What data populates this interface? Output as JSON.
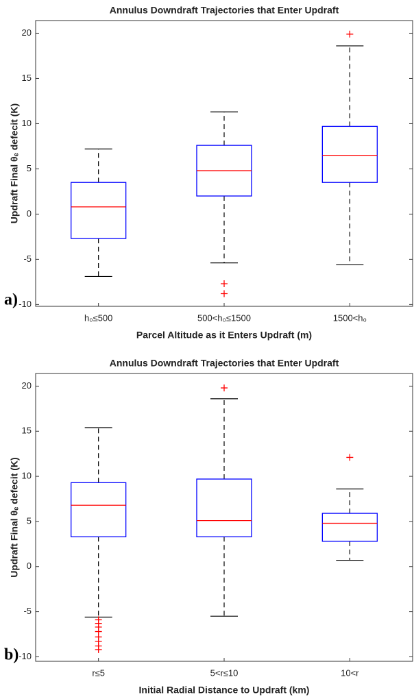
{
  "chart_data": [
    {
      "type": "box",
      "title": "Annulus Downdraft Trajectories that Enter Updraft",
      "x_label": "Parcel Altitude as it Enters Updraft (m)",
      "y_label": "Updraft Final θₑ defecit (K)",
      "panel_label": "a)",
      "categories": [
        "h₀≤500",
        "500<h₀≤1500",
        "1500<h₀"
      ],
      "boxes": [
        {
          "whisker_low": -6.9,
          "q1": -2.7,
          "median": 0.8,
          "q3": 3.5,
          "whisker_high": 7.2,
          "outliers": []
        },
        {
          "whisker_low": -5.4,
          "q1": 2.0,
          "median": 4.8,
          "q3": 7.6,
          "whisker_high": 11.3,
          "outliers": [
            -7.7,
            -8.8
          ]
        },
        {
          "whisker_low": -5.6,
          "q1": 3.5,
          "median": 6.5,
          "q3": 9.7,
          "whisker_high": 18.6,
          "outliers": [
            19.9
          ]
        }
      ],
      "box_color": "#0000ff",
      "median_color": "#ff0000",
      "outlier_color": "#ff0000",
      "ylim": [
        -10.2,
        21.4
      ],
      "yticks": [
        -10,
        -5,
        0,
        5,
        10,
        15,
        20
      ],
      "grid": false
    },
    {
      "type": "box",
      "title": "Annulus Downdraft Trajectories that Enter Updraft",
      "x_label": "Initial Radial Distance to Updraft (km)",
      "y_label": "Updraft Final θₑ defecit (K)",
      "panel_label": "b)",
      "categories": [
        "r≤5",
        "5<r≤10",
        "10<r"
      ],
      "boxes": [
        {
          "whisker_low": -5.6,
          "q1": 3.3,
          "median": 6.8,
          "q3": 9.3,
          "whisker_high": 15.4,
          "outliers": [
            -5.9,
            -6.3,
            -6.7,
            -7.2,
            -7.8,
            -8.3,
            -8.8,
            -9.2
          ]
        },
        {
          "whisker_low": -5.5,
          "q1": 3.3,
          "median": 5.1,
          "q3": 9.7,
          "whisker_high": 18.6,
          "outliers": [
            19.8
          ]
        },
        {
          "whisker_low": 0.7,
          "q1": 2.8,
          "median": 4.8,
          "q3": 5.9,
          "whisker_high": 8.6,
          "outliers": [
            12.1
          ]
        }
      ],
      "box_color": "#0000ff",
      "median_color": "#ff0000",
      "outlier_color": "#ff0000",
      "ylim": [
        -10.5,
        21.4
      ],
      "yticks": [
        -10,
        -5,
        0,
        5,
        10,
        15,
        20
      ],
      "grid": false
    }
  ]
}
